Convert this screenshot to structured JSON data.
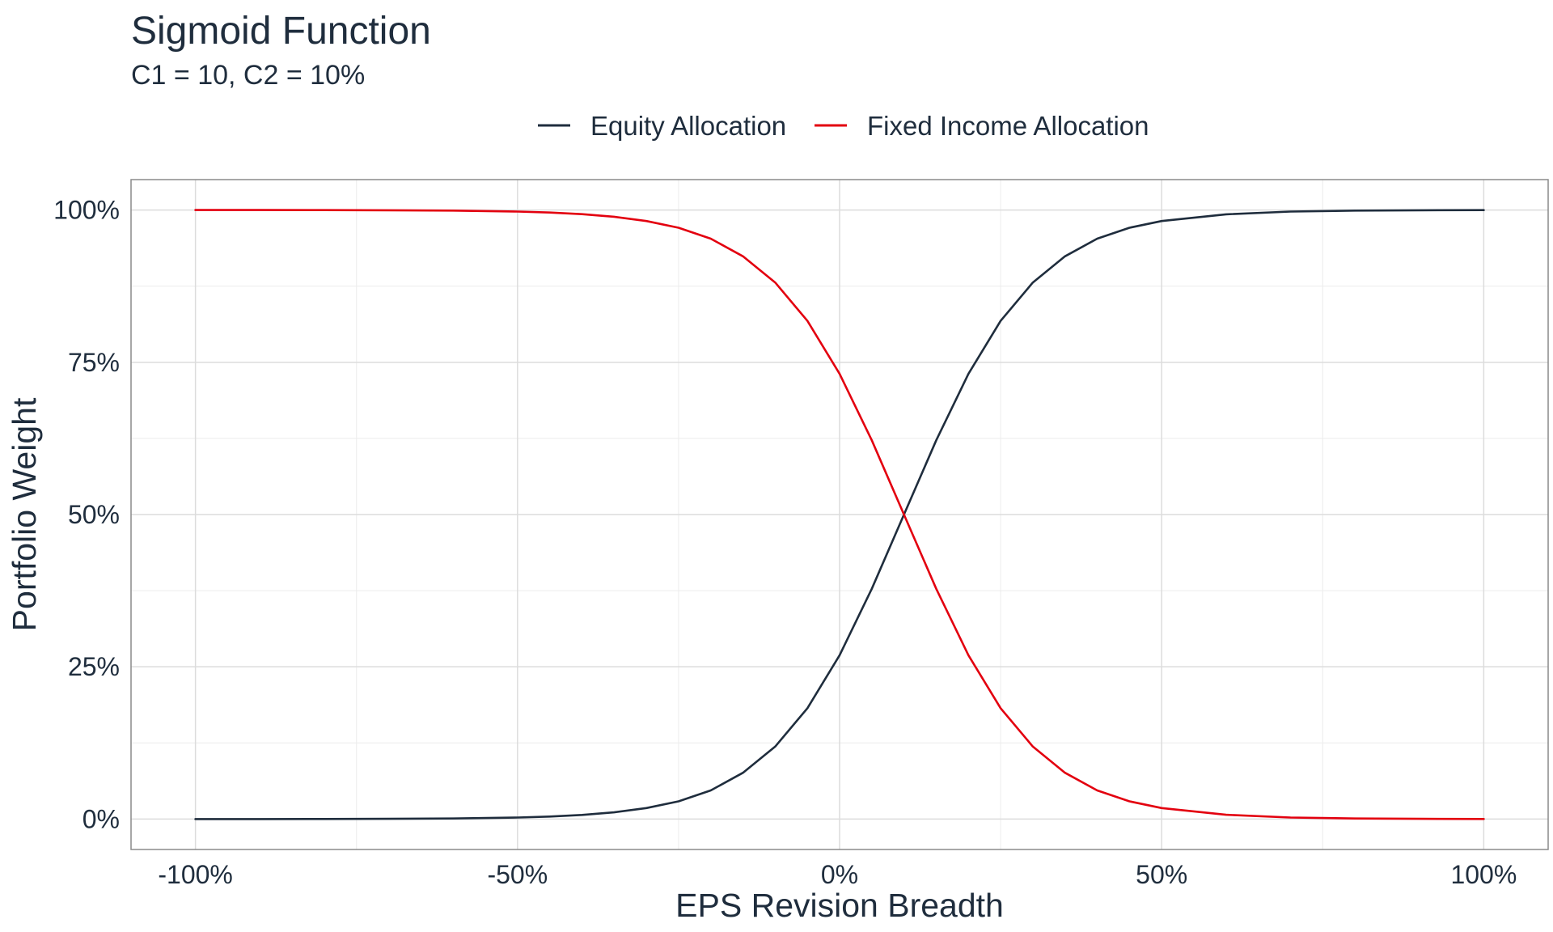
{
  "chart_data": {
    "type": "line",
    "title": "Sigmoid Function",
    "subtitle": "C1 = 10, C2 = 10%",
    "xlabel": "EPS Revision Breadth",
    "ylabel": "Portfolio Weight",
    "xlim": [
      -1.1,
      1.1
    ],
    "ylim": [
      -0.05,
      1.05
    ],
    "x_ticks": [
      -1.0,
      -0.5,
      0.0,
      0.5,
      1.0
    ],
    "x_tick_labels": [
      "-100%",
      "-50%",
      "0%",
      "50%",
      "100%"
    ],
    "y_ticks": [
      0,
      0.25,
      0.5,
      0.75,
      1.0
    ],
    "y_tick_labels": [
      "0%",
      "25%",
      "50%",
      "75%",
      "100%"
    ],
    "grid": true,
    "legend_position": "top",
    "x": [
      -1.0,
      -0.9,
      -0.8,
      -0.7,
      -0.6,
      -0.5,
      -0.45,
      -0.4,
      -0.35,
      -0.3,
      -0.25,
      -0.2,
      -0.15,
      -0.1,
      -0.05,
      0.0,
      0.05,
      0.1,
      0.15,
      0.2,
      0.25,
      0.3,
      0.35,
      0.4,
      0.45,
      0.5,
      0.6,
      0.7,
      0.8,
      0.9,
      1.0
    ],
    "series": [
      {
        "name": "Equity Allocation",
        "color": "#1f2d3d",
        "values": [
          0.0,
          0.0,
          0.0001,
          0.0003,
          0.0009,
          0.0025,
          0.0041,
          0.0067,
          0.011,
          0.018,
          0.029,
          0.047,
          0.076,
          0.119,
          0.182,
          0.269,
          0.378,
          0.5,
          0.622,
          0.731,
          0.818,
          0.881,
          0.924,
          0.953,
          0.971,
          0.982,
          0.993,
          0.9975,
          0.9991,
          0.9997,
          0.9999
        ]
      },
      {
        "name": "Fixed Income Allocation",
        "color": "#e3000f",
        "values": [
          1.0,
          1.0,
          0.9999,
          0.9997,
          0.9991,
          0.9975,
          0.9959,
          0.9933,
          0.989,
          0.982,
          0.971,
          0.953,
          0.924,
          0.881,
          0.818,
          0.731,
          0.622,
          0.5,
          0.378,
          0.269,
          0.182,
          0.119,
          0.076,
          0.047,
          0.029,
          0.018,
          0.007,
          0.0025,
          0.0009,
          0.0003,
          0.0001
        ]
      }
    ]
  }
}
